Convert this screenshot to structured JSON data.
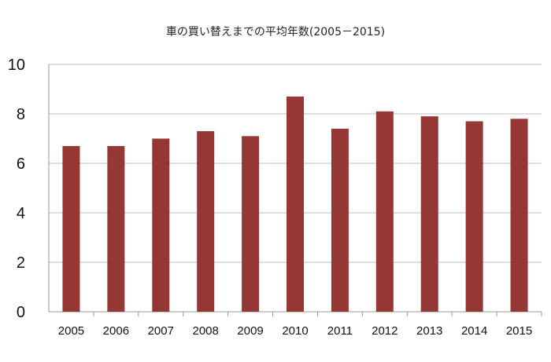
{
  "chart_data": {
    "type": "bar",
    "title": "車の買い替えまでの平均年数(2005－2015)",
    "categories": [
      "2005",
      "2006",
      "2007",
      "2008",
      "2009",
      "2010",
      "2011",
      "2012",
      "2013",
      "2014",
      "2015"
    ],
    "values": [
      6.7,
      6.7,
      7.0,
      7.3,
      7.1,
      8.7,
      7.4,
      8.1,
      7.9,
      7.7,
      7.8
    ],
    "ylim": [
      0,
      10
    ],
    "yticks": [
      0,
      2,
      4,
      6,
      8,
      10
    ],
    "xlabel": "",
    "ylabel": "",
    "grid": true,
    "legend": "none",
    "bar_color": "#953735"
  }
}
